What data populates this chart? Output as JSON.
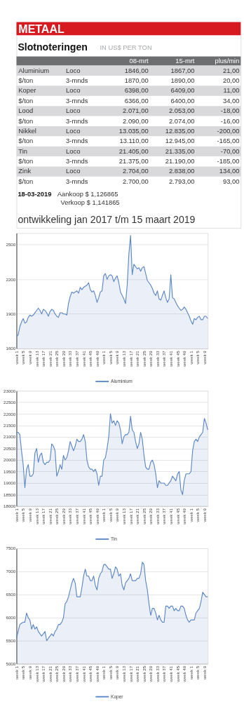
{
  "chart_data": [
    {
      "type": "other",
      "title": "METAAL",
      "subtitle": "Slotnoteringen",
      "legend_title": "IN US$ PER TON",
      "categories": [
        null,
        null,
        "08-mrt",
        "15-mrt",
        "plus/min"
      ],
      "cell_labels": [
        [
          "Aluminium",
          "Loco",
          "1846,00",
          "1867,00",
          "21,00"
        ],
        [
          "$/ton",
          "3-mnds",
          "1870,00",
          "1890,00",
          "20,00"
        ],
        [
          "Koper",
          "Loco",
          "6398,00",
          "6409,00",
          "11,00"
        ],
        [
          "$/ton",
          "3-mnds",
          "6366,00",
          "6400,00",
          "34,00"
        ],
        [
          "Lood",
          "Loco",
          "2.071,00",
          "2.053,00",
          "-18,00"
        ],
        [
          "$/ton",
          "3-mnds",
          "2.090,00",
          "2.074,00",
          "-16,00"
        ],
        [
          "Nikkel",
          "Loco",
          "13.035,00",
          "12.835,00",
          "-200,00"
        ],
        [
          "$/ton",
          "3-mnds",
          "13.110,00",
          "12.945,00",
          "-165,00"
        ],
        [
          "Tin",
          "Loco",
          "21.405,00",
          "21.335,00",
          "-70,00"
        ],
        [
          "$/ton",
          "3-mnds",
          "21.375,00",
          "21.190,00",
          "-185,00"
        ],
        [
          "Zink",
          "Loco",
          "2.704,00",
          "2.838,00",
          "134,00"
        ],
        [
          "$/ton",
          "3-mnds",
          "2.700,00",
          "2.793,00",
          "93,00"
        ]
      ],
      "annotations": [
        "18-03-2019",
        "Aankoop $ 1,126865",
        "Verkoop $ 1,141865",
        "ontwikkeling jan 2017 t/m 15 maart 2019"
      ]
    },
    {
      "type": "area",
      "grid": "y",
      "legend": "bottom",
      "ylim": [
        1600,
        2600
      ],
      "yticks": [
        1600,
        1900,
        2200,
        2500
      ],
      "categories": [
        "week 1",
        null,
        null,
        null,
        "week 5",
        null,
        null,
        null,
        "week 9",
        null,
        null,
        null,
        "week 13",
        null,
        null,
        null,
        "week 17",
        null,
        null,
        null,
        "week 21",
        null,
        null,
        null,
        "week 25",
        null,
        null,
        null,
        "week 29",
        null,
        null,
        null,
        "week 33",
        null,
        null,
        null,
        "week 37",
        null,
        null,
        null,
        "week 41",
        null,
        null,
        null,
        "week 45",
        null,
        null,
        null,
        "week 49",
        null,
        null,
        null,
        "week 1",
        null,
        null,
        null,
        "week 5",
        null,
        null,
        null,
        "week 9",
        null,
        null,
        null,
        "week 13",
        null,
        null,
        null,
        "week 17",
        null,
        null,
        null,
        "week 21",
        null,
        null,
        null,
        "week 25",
        null,
        null,
        null,
        "week 29",
        null,
        null,
        null,
        "week 33",
        null,
        null,
        null,
        "week 37",
        null,
        null,
        null,
        "week 41",
        null,
        null,
        null,
        "week 45",
        null,
        null,
        null,
        "week 49",
        null,
        null,
        null,
        "week 1",
        null,
        null,
        null,
        "week 5",
        null,
        null,
        null,
        "week 9",
        null,
        null
      ],
      "series": [
        {
          "name": "Aluminium",
          "color": "#5b87c5",
          "values": [
            1700,
            1720,
            1790,
            1830,
            1860,
            1820,
            1830,
            1870,
            1890,
            1880,
            1890,
            1910,
            1930,
            1950,
            1930,
            1900,
            1940,
            1930,
            1910,
            1880,
            1920,
            1940,
            1930,
            1900,
            1880,
            1870,
            1910,
            1910,
            1900,
            1900,
            1890,
            1990,
            2050,
            2090,
            2080,
            2090,
            2100,
            2080,
            2130,
            2110,
            2130,
            2140,
            2150,
            2170,
            2110,
            2090,
            2100,
            2060,
            2000,
            2040,
            2090,
            2100,
            2230,
            2250,
            2200,
            2230,
            2240,
            2230,
            2180,
            2210,
            2230,
            2170,
            2090,
            2060,
            2030,
            1990,
            2150,
            2420,
            2580,
            2240,
            2330,
            2310,
            2290,
            2300,
            2270,
            2300,
            2310,
            2250,
            2190,
            2170,
            2150,
            2120,
            2080,
            2060,
            2100,
            2030,
            2020,
            2060,
            2100,
            2040,
            2000,
            2030,
            2240,
            2040,
            2030,
            2000,
            1970,
            1950,
            1930,
            1940,
            1960,
            1940,
            1910,
            1880,
            1840,
            1810,
            1860,
            1850,
            1870,
            1880,
            1850,
            1850,
            1880,
            1880,
            1860
          ]
        }
      ]
    },
    {
      "type": "area",
      "grid": "y",
      "legend": "bottom",
      "ylim": [
        18000,
        23000
      ],
      "yticks": [
        18000,
        18500,
        19000,
        19500,
        20000,
        20500,
        21000,
        21500,
        22000,
        22500,
        23000
      ],
      "categories": [
        "week 1",
        null,
        null,
        null,
        "week 5",
        null,
        null,
        null,
        "week 9",
        null,
        null,
        null,
        "week 13",
        null,
        null,
        null,
        "week 17",
        null,
        null,
        null,
        "week 21",
        null,
        null,
        null,
        "week 25",
        null,
        null,
        null,
        "week 29",
        null,
        null,
        null,
        "week 33",
        null,
        null,
        null,
        "week 37",
        null,
        null,
        null,
        "week 41",
        null,
        null,
        null,
        "week 45",
        null,
        null,
        null,
        "week 49",
        null,
        null,
        null,
        "week 1",
        null,
        null,
        null,
        "week 5",
        null,
        null,
        null,
        "week 9",
        null,
        null,
        null,
        "week 13",
        null,
        null,
        null,
        "week 17",
        null,
        null,
        null,
        "week 21",
        null,
        null,
        null,
        "week 25",
        null,
        null,
        null,
        "week 29",
        null,
        null,
        null,
        "week 33",
        null,
        null,
        null,
        "week 37",
        null,
        null,
        null,
        "week 41",
        null,
        null,
        null,
        "week 45",
        null,
        null,
        null,
        "week 49",
        null,
        null,
        null,
        "week 1",
        null,
        null,
        null,
        "week 5",
        null,
        null,
        null,
        "week 9",
        null,
        null
      ],
      "series": [
        {
          "name": "Tin",
          "color": "#5b87c5",
          "values": [
            21200,
            21200,
            21100,
            20400,
            19800,
            18800,
            19600,
            19800,
            19300,
            19300,
            19400,
            20300,
            20500,
            19900,
            20200,
            20300,
            19900,
            19800,
            19900,
            19900,
            20000,
            20700,
            20600,
            20400,
            19300,
            19500,
            19800,
            19600,
            20200,
            20000,
            20100,
            20400,
            20800,
            20600,
            20400,
            20600,
            20900,
            20800,
            20800,
            20900,
            21100,
            20800,
            20000,
            19700,
            19600,
            19600,
            19500,
            19600,
            19400,
            18900,
            19300,
            19300,
            20000,
            20100,
            20500,
            21000,
            22000,
            21600,
            21700,
            21500,
            21700,
            21600,
            21300,
            20700,
            21000,
            21100,
            21100,
            21200,
            21900,
            21300,
            21200,
            20800,
            20500,
            20700,
            21200,
            20900,
            20200,
            19700,
            19600,
            19600,
            19900,
            20000,
            19800,
            19400,
            18800,
            19100,
            19000,
            19000,
            19000,
            18900,
            18900,
            19000,
            19100,
            19300,
            19200,
            19100,
            19400,
            19500,
            18700,
            18500,
            19100,
            19400,
            19400,
            19400,
            19500,
            20400,
            20800,
            20900,
            20800,
            21000,
            21100,
            21200,
            21800,
            21600,
            21300
          ]
        }
      ]
    },
    {
      "type": "area",
      "grid": "y",
      "legend": "bottom",
      "ylim": [
        5000,
        7500
      ],
      "yticks": [
        5000,
        5500,
        6000,
        6500,
        7000,
        7500
      ],
      "categories": [
        "week 1",
        null,
        null,
        null,
        "week 5",
        null,
        null,
        null,
        "week 9",
        null,
        null,
        null,
        "week 13",
        null,
        null,
        null,
        "week 17",
        null,
        null,
        null,
        "week 21",
        null,
        null,
        null,
        "week 25",
        null,
        null,
        null,
        "week 29",
        null,
        null,
        null,
        "week 33",
        null,
        null,
        null,
        "week 37",
        null,
        null,
        null,
        "week 41",
        null,
        null,
        null,
        "week 45",
        null,
        null,
        null,
        "week 49",
        null,
        null,
        null,
        "week 1",
        null,
        null,
        null,
        "week 5",
        null,
        null,
        null,
        "week 9",
        null,
        null,
        null,
        "week 13",
        null,
        null,
        null,
        "week 17",
        null,
        null,
        null,
        "week 21",
        null,
        null,
        null,
        "week 25",
        null,
        null,
        null,
        "week 29",
        null,
        null,
        null,
        "week 33",
        null,
        null,
        null,
        "week 37",
        null,
        null,
        null,
        "week 41",
        null,
        null,
        null,
        "week 45",
        null,
        null,
        null,
        "week 49",
        null,
        null,
        null,
        "week 1",
        null,
        null,
        null,
        "week 5",
        null,
        null,
        null,
        "week 9",
        null,
        null
      ],
      "series": [
        {
          "name": "Koper",
          "color": "#5b87c5",
          "values": [
            5550,
            5700,
            5850,
            5880,
            5900,
            5900,
            6100,
            6000,
            5950,
            5750,
            5850,
            5750,
            5800,
            5700,
            5650,
            5600,
            5650,
            5700,
            5500,
            5550,
            5600,
            5650,
            5600,
            5700,
            5750,
            5850,
            5850,
            5900,
            6000,
            6300,
            6350,
            6450,
            6600,
            6750,
            6850,
            6750,
            6450,
            6450,
            6450,
            6650,
            6900,
            7050,
            6900,
            6900,
            6800,
            6800,
            6900,
            6700,
            6600,
            6850,
            6950,
            7000,
            7150,
            7150,
            7100,
            7050,
            7050,
            6850,
            6950,
            7100,
            7050,
            6900,
            6950,
            6700,
            6600,
            6750,
            6800,
            6850,
            6950,
            6800,
            6800,
            6800,
            6850,
            6850,
            6950,
            7200,
            7150,
            6800,
            6600,
            6300,
            6050,
            6200,
            6200,
            6100,
            5950,
            6050,
            5950,
            5900,
            5900,
            6250,
            6250,
            6200,
            6250,
            6250,
            6150,
            6200,
            6150,
            6150,
            6250,
            6250,
            6200,
            6050,
            5950,
            5900,
            5950,
            5950,
            5950,
            6100,
            6150,
            6200,
            6350,
            6550,
            6500,
            6450,
            6450
          ]
        }
      ]
    }
  ]
}
